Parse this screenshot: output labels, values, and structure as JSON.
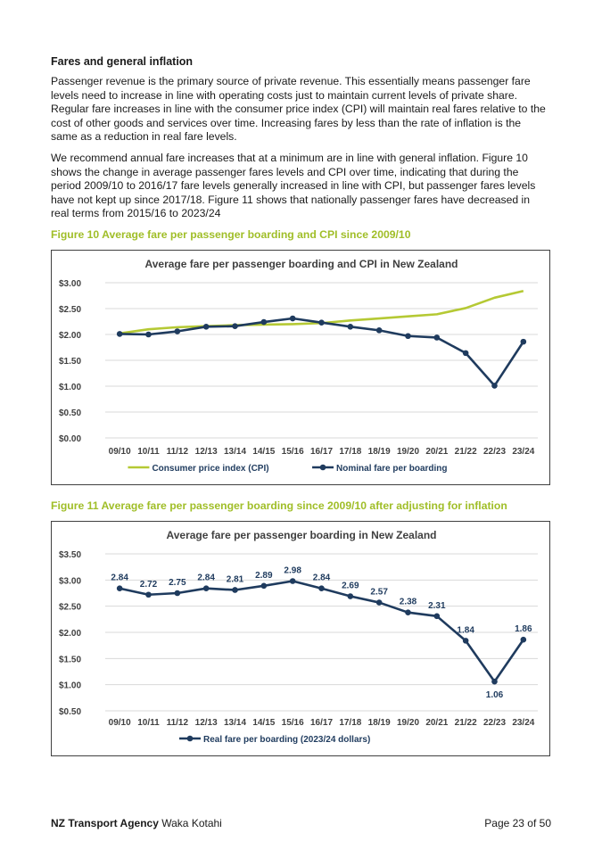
{
  "section_title": "Fares and general inflation",
  "paragraphs": [
    "Passenger revenue is the primary source of private revenue. This essentially means passenger fare levels need to increase in line with operating costs just to maintain current levels of private share. Regular fare increases in line with the consumer price index (CPI) will maintain real fares relative to the cost of other goods and services over time. Increasing fares by less than the rate of inflation is the same as a reduction in real fare levels.",
    "We recommend annual fare increases that at a minimum are in line with general inflation.  Figure 10 shows the change in average passenger fares levels and CPI over time, indicating that during the period 2009/10 to 2016/17 fare levels generally increased in line with CPI, but passenger fares levels have not kept up since 2017/18. Figure 11 shows that nationally passenger fares have decreased in real terms from 2015/16 to 2023/24"
  ],
  "figure10_caption": "Figure 10 Average fare per passenger boarding and CPI since 2009/10",
  "figure11_caption": "Figure 11 Average fare per passenger boarding since 2009/10 after adjusting for inflation",
  "footer": {
    "org_bold": "NZ Transport Agency",
    "org_rest": " Waka Kotahi",
    "page": "Page 23 of 50"
  },
  "colors": {
    "cpi": "#b5c934",
    "fare": "#1f3b5e",
    "caption": "#a0be28",
    "grid": "#d9d9d9"
  },
  "chart_data": [
    {
      "type": "line",
      "title": "Average fare per passenger boarding  and CPI in New Zealand",
      "categories": [
        "09/10",
        "10/11",
        "11/12",
        "12/13",
        "13/14",
        "14/15",
        "15/16",
        "16/17",
        "17/18",
        "18/19",
        "19/20",
        "20/21",
        "21/22",
        "22/23",
        "23/24"
      ],
      "yticks": [
        "$0.00",
        "$0.50",
        "$1.00",
        "$1.50",
        "$2.00",
        "$2.50",
        "$3.00"
      ],
      "ylim": [
        0,
        3
      ],
      "series": [
        {
          "name": "Consumer price index (CPI)",
          "color": "#b5c934",
          "markers": false,
          "values": [
            2.02,
            2.1,
            2.14,
            2.16,
            2.18,
            2.19,
            2.2,
            2.22,
            2.27,
            2.31,
            2.35,
            2.39,
            2.51,
            2.71,
            2.84
          ]
        },
        {
          "name": "Nominal fare per boarding",
          "color": "#1f3b5e",
          "markers": true,
          "values": [
            2.01,
            2.0,
            2.06,
            2.15,
            2.16,
            2.24,
            2.31,
            2.23,
            2.15,
            2.08,
            1.97,
            1.94,
            1.64,
            1.01,
            1.86
          ]
        }
      ],
      "legend_position": "bottom"
    },
    {
      "type": "line",
      "title": "Average fare per passenger boarding  in New Zealand",
      "categories": [
        "09/10",
        "10/11",
        "11/12",
        "12/13",
        "13/14",
        "14/15",
        "15/16",
        "16/17",
        "17/18",
        "18/19",
        "19/20",
        "20/21",
        "21/22",
        "22/23",
        "23/24"
      ],
      "yticks": [
        "$0.50",
        "$1.00",
        "$1.50",
        "$2.00",
        "$2.50",
        "$3.00",
        "$3.50"
      ],
      "ylim": [
        0.5,
        3.5
      ],
      "series": [
        {
          "name": "Real fare per boarding (2023/24 dollars)",
          "color": "#1f3b5e",
          "markers": true,
          "values": [
            2.84,
            2.72,
            2.75,
            2.84,
            2.81,
            2.89,
            2.98,
            2.84,
            2.69,
            2.57,
            2.38,
            2.31,
            1.84,
            1.06,
            1.86
          ],
          "labels": [
            "2.84",
            "2.72",
            "2.75",
            "2.84",
            "2.81",
            "2.89",
            "2.98",
            "2.84",
            "2.69",
            "2.57",
            "2.38",
            "2.31",
            "1.84",
            "1.06",
            "1.86"
          ]
        }
      ],
      "legend_position": "bottom"
    }
  ]
}
